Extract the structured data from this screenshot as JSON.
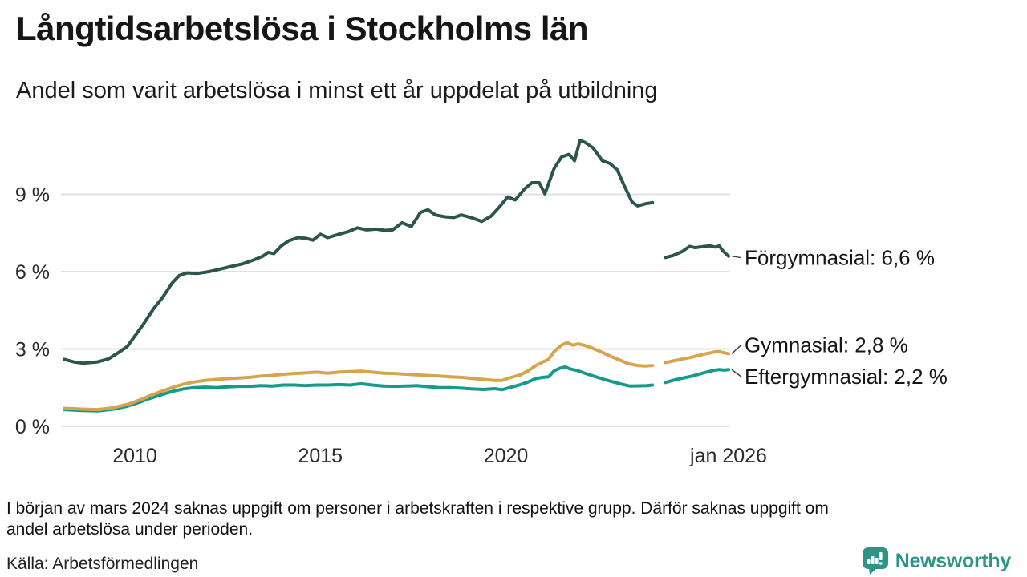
{
  "header": {
    "title": "Långtidsarbetslösa i Stockholms län",
    "subtitle": "Andel som varit arbetslösa i minst ett år uppdelat på utbildning"
  },
  "chart_data": {
    "type": "line",
    "title": "Långtidsarbetslösa i Stockholms län",
    "xlabel": "",
    "ylabel": "",
    "x_range": [
      2008.07,
      2026.0
    ],
    "ylim": [
      0,
      11.3
    ],
    "grid": true,
    "gap_note": "Lines broken (no data) approx dec 2023 - apr 2024",
    "y_ticks": [
      {
        "value": 0,
        "label": "0 %"
      },
      {
        "value": 3,
        "label": "3 %"
      },
      {
        "value": 6,
        "label": "6 %"
      },
      {
        "value": 9,
        "label": "9 %"
      }
    ],
    "x_ticks": [
      {
        "value": 2010,
        "label": "2010"
      },
      {
        "value": 2015,
        "label": "2015"
      },
      {
        "value": 2020,
        "label": "2020"
      },
      {
        "value": 2026,
        "label": "jan 2026"
      }
    ],
    "series": [
      {
        "id": "forgymnasial",
        "name": "Förgymnasial",
        "label": "Förgymnasial: 6,6 %",
        "end_value": 6.6,
        "color": "#2b564d",
        "label_dy": 2,
        "segments": [
          [
            [
              2008.1,
              2.6
            ],
            [
              2008.35,
              2.5
            ],
            [
              2008.6,
              2.45
            ],
            [
              2009.0,
              2.5
            ],
            [
              2009.3,
              2.62
            ],
            [
              2009.6,
              2.9
            ],
            [
              2009.8,
              3.1
            ],
            [
              2010.0,
              3.5
            ],
            [
              2010.25,
              4.0
            ],
            [
              2010.5,
              4.55
            ],
            [
              2010.75,
              5.0
            ],
            [
              2011.0,
              5.55
            ],
            [
              2011.2,
              5.85
            ],
            [
              2011.4,
              5.95
            ],
            [
              2011.7,
              5.93
            ],
            [
              2012.0,
              6.0
            ],
            [
              2012.3,
              6.1
            ],
            [
              2012.6,
              6.2
            ],
            [
              2012.9,
              6.3
            ],
            [
              2013.2,
              6.45
            ],
            [
              2013.45,
              6.6
            ],
            [
              2013.6,
              6.75
            ],
            [
              2013.75,
              6.7
            ],
            [
              2013.95,
              7.0
            ],
            [
              2014.15,
              7.2
            ],
            [
              2014.4,
              7.32
            ],
            [
              2014.6,
              7.3
            ],
            [
              2014.8,
              7.22
            ],
            [
              2015.0,
              7.45
            ],
            [
              2015.2,
              7.32
            ],
            [
              2015.5,
              7.45
            ],
            [
              2015.75,
              7.55
            ],
            [
              2016.0,
              7.7
            ],
            [
              2016.25,
              7.62
            ],
            [
              2016.5,
              7.65
            ],
            [
              2016.75,
              7.6
            ],
            [
              2016.95,
              7.62
            ],
            [
              2017.2,
              7.9
            ],
            [
              2017.45,
              7.75
            ],
            [
              2017.7,
              8.3
            ],
            [
              2017.9,
              8.4
            ],
            [
              2018.1,
              8.2
            ],
            [
              2018.35,
              8.13
            ],
            [
              2018.6,
              8.1
            ],
            [
              2018.8,
              8.2
            ],
            [
              2019.1,
              8.08
            ],
            [
              2019.35,
              7.95
            ],
            [
              2019.6,
              8.15
            ],
            [
              2019.85,
              8.55
            ],
            [
              2020.05,
              8.9
            ],
            [
              2020.25,
              8.78
            ],
            [
              2020.5,
              9.2
            ],
            [
              2020.7,
              9.45
            ],
            [
              2020.9,
              9.45
            ],
            [
              2021.05,
              9.02
            ],
            [
              2021.3,
              10.0
            ],
            [
              2021.5,
              10.45
            ],
            [
              2021.7,
              10.55
            ],
            [
              2021.85,
              10.3
            ],
            [
              2022.0,
              11.1
            ],
            [
              2022.15,
              11.0
            ],
            [
              2022.35,
              10.8
            ],
            [
              2022.6,
              10.3
            ],
            [
              2022.8,
              10.2
            ],
            [
              2023.0,
              9.95
            ],
            [
              2023.2,
              9.3
            ],
            [
              2023.4,
              8.7
            ],
            [
              2023.55,
              8.55
            ],
            [
              2023.75,
              8.63
            ],
            [
              2023.95,
              8.68
            ]
          ],
          [
            [
              2024.3,
              6.55
            ],
            [
              2024.5,
              6.62
            ],
            [
              2024.75,
              6.78
            ],
            [
              2024.95,
              6.98
            ],
            [
              2025.1,
              6.93
            ],
            [
              2025.3,
              6.97
            ],
            [
              2025.5,
              7.0
            ],
            [
              2025.65,
              6.95
            ],
            [
              2025.75,
              7.0
            ],
            [
              2025.85,
              6.8
            ],
            [
              2026.0,
              6.6
            ]
          ]
        ]
      },
      {
        "id": "eftergymnasial",
        "name": "Eftergymnasial",
        "label": "Eftergymnasial: 2,2 %",
        "end_value": 2.2,
        "color": "#169a89",
        "label_dy": 9,
        "segments": [
          [
            [
              2008.1,
              0.65
            ],
            [
              2008.5,
              0.62
            ],
            [
              2009.0,
              0.6
            ],
            [
              2009.4,
              0.66
            ],
            [
              2009.8,
              0.78
            ],
            [
              2010.1,
              0.92
            ],
            [
              2010.4,
              1.08
            ],
            [
              2010.7,
              1.22
            ],
            [
              2011.0,
              1.35
            ],
            [
              2011.3,
              1.45
            ],
            [
              2011.6,
              1.5
            ],
            [
              2011.9,
              1.52
            ],
            [
              2012.2,
              1.5
            ],
            [
              2012.5,
              1.53
            ],
            [
              2012.8,
              1.55
            ],
            [
              2013.1,
              1.55
            ],
            [
              2013.4,
              1.58
            ],
            [
              2013.7,
              1.56
            ],
            [
              2014.0,
              1.6
            ],
            [
              2014.3,
              1.6
            ],
            [
              2014.6,
              1.58
            ],
            [
              2014.9,
              1.6
            ],
            [
              2015.2,
              1.6
            ],
            [
              2015.5,
              1.62
            ],
            [
              2015.8,
              1.6
            ],
            [
              2016.1,
              1.65
            ],
            [
              2016.4,
              1.6
            ],
            [
              2016.7,
              1.56
            ],
            [
              2017.0,
              1.55
            ],
            [
              2017.3,
              1.56
            ],
            [
              2017.6,
              1.58
            ],
            [
              2017.9,
              1.54
            ],
            [
              2018.2,
              1.5
            ],
            [
              2018.5,
              1.5
            ],
            [
              2018.8,
              1.48
            ],
            [
              2019.1,
              1.45
            ],
            [
              2019.4,
              1.43
            ],
            [
              2019.7,
              1.46
            ],
            [
              2019.9,
              1.42
            ],
            [
              2020.1,
              1.5
            ],
            [
              2020.4,
              1.62
            ],
            [
              2020.6,
              1.72
            ],
            [
              2020.8,
              1.85
            ],
            [
              2021.0,
              1.9
            ],
            [
              2021.15,
              1.92
            ],
            [
              2021.3,
              2.15
            ],
            [
              2021.45,
              2.25
            ],
            [
              2021.6,
              2.3
            ],
            [
              2021.75,
              2.22
            ],
            [
              2021.95,
              2.15
            ],
            [
              2022.15,
              2.05
            ],
            [
              2022.4,
              1.93
            ],
            [
              2022.65,
              1.82
            ],
            [
              2022.9,
              1.72
            ],
            [
              2023.1,
              1.64
            ],
            [
              2023.35,
              1.56
            ],
            [
              2023.6,
              1.57
            ],
            [
              2023.8,
              1.58
            ],
            [
              2023.95,
              1.6
            ]
          ],
          [
            [
              2024.3,
              1.7
            ],
            [
              2024.55,
              1.8
            ],
            [
              2024.8,
              1.88
            ],
            [
              2025.0,
              1.94
            ],
            [
              2025.2,
              2.02
            ],
            [
              2025.4,
              2.1
            ],
            [
              2025.6,
              2.17
            ],
            [
              2025.75,
              2.2
            ],
            [
              2025.9,
              2.18
            ],
            [
              2026.0,
              2.2
            ]
          ]
        ]
      },
      {
        "id": "gymnasial",
        "name": "Gymnasial",
        "label": "Gymnasial: 2,8 %",
        "end_value": 2.8,
        "color": "#d6a44c",
        "label_dy": -11,
        "segments": [
          [
            [
              2008.1,
              0.7
            ],
            [
              2008.5,
              0.67
            ],
            [
              2009.0,
              0.65
            ],
            [
              2009.4,
              0.72
            ],
            [
              2009.8,
              0.85
            ],
            [
              2010.1,
              1.0
            ],
            [
              2010.4,
              1.18
            ],
            [
              2010.7,
              1.35
            ],
            [
              2011.0,
              1.5
            ],
            [
              2011.3,
              1.63
            ],
            [
              2011.6,
              1.72
            ],
            [
              2011.9,
              1.78
            ],
            [
              2012.2,
              1.82
            ],
            [
              2012.5,
              1.85
            ],
            [
              2012.8,
              1.87
            ],
            [
              2013.1,
              1.9
            ],
            [
              2013.4,
              1.95
            ],
            [
              2013.7,
              1.97
            ],
            [
              2014.0,
              2.02
            ],
            [
              2014.3,
              2.05
            ],
            [
              2014.6,
              2.07
            ],
            [
              2014.9,
              2.1
            ],
            [
              2015.2,
              2.06
            ],
            [
              2015.5,
              2.1
            ],
            [
              2015.8,
              2.12
            ],
            [
              2016.1,
              2.14
            ],
            [
              2016.4,
              2.1
            ],
            [
              2016.7,
              2.06
            ],
            [
              2017.0,
              2.05
            ],
            [
              2017.3,
              2.02
            ],
            [
              2017.6,
              2.0
            ],
            [
              2017.9,
              1.97
            ],
            [
              2018.2,
              1.95
            ],
            [
              2018.5,
              1.92
            ],
            [
              2018.8,
              1.9
            ],
            [
              2019.1,
              1.86
            ],
            [
              2019.4,
              1.82
            ],
            [
              2019.7,
              1.78
            ],
            [
              2019.9,
              1.78
            ],
            [
              2020.1,
              1.88
            ],
            [
              2020.4,
              2.0
            ],
            [
              2020.6,
              2.15
            ],
            [
              2020.8,
              2.35
            ],
            [
              2021.0,
              2.5
            ],
            [
              2021.15,
              2.6
            ],
            [
              2021.3,
              2.9
            ],
            [
              2021.5,
              3.15
            ],
            [
              2021.65,
              3.25
            ],
            [
              2021.8,
              3.15
            ],
            [
              2021.95,
              3.2
            ],
            [
              2022.1,
              3.15
            ],
            [
              2022.3,
              3.05
            ],
            [
              2022.55,
              2.9
            ],
            [
              2022.8,
              2.73
            ],
            [
              2023.05,
              2.58
            ],
            [
              2023.3,
              2.43
            ],
            [
              2023.55,
              2.36
            ],
            [
              2023.75,
              2.34
            ],
            [
              2023.95,
              2.36
            ]
          ],
          [
            [
              2024.3,
              2.47
            ],
            [
              2024.55,
              2.55
            ],
            [
              2024.8,
              2.62
            ],
            [
              2025.0,
              2.68
            ],
            [
              2025.2,
              2.75
            ],
            [
              2025.4,
              2.82
            ],
            [
              2025.6,
              2.88
            ],
            [
              2025.75,
              2.9
            ],
            [
              2025.85,
              2.86
            ],
            [
              2026.0,
              2.82
            ]
          ]
        ]
      }
    ]
  },
  "footnote": {
    "lines": [
      "I början av mars 2024 saknas uppgift om personer i arbetskraften i respektive grupp. Därför saknas uppgift om",
      "andel arbetslösa under perioden."
    ]
  },
  "source": {
    "text": "Källa: Arbetsförmedlingen"
  },
  "branding": {
    "name": "Newsworthy",
    "color": "#2f9488",
    "icon": "newsworthy-bubble-chart-icon"
  }
}
